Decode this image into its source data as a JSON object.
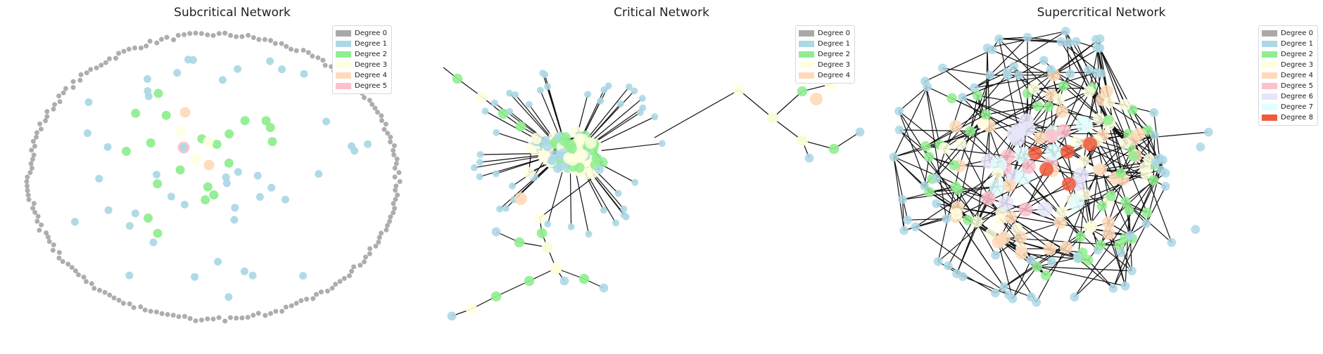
{
  "panels": [
    {
      "title": "Subcritical Network",
      "legend": [
        {
          "label": "Degree 0",
          "color": "#a9a9a9"
        },
        {
          "label": "Degree 1",
          "color": "#add8e6"
        },
        {
          "label": "Degree 2",
          "color": "#90ee90"
        },
        {
          "label": "Degree 3",
          "color": "#ffffe0"
        },
        {
          "label": "Degree 4",
          "color": "#ffdab9"
        },
        {
          "label": "Degree 5",
          "color": "#ffc0cb"
        }
      ]
    },
    {
      "title": "Critical Network",
      "legend": [
        {
          "label": "Degree 0",
          "color": "#a9a9a9"
        },
        {
          "label": "Degree 1",
          "color": "#add8e6"
        },
        {
          "label": "Degree 2",
          "color": "#90ee90"
        },
        {
          "label": "Degree 3",
          "color": "#ffffe0"
        },
        {
          "label": "Degree 4",
          "color": "#ffdab9"
        }
      ]
    },
    {
      "title": "Supercritical Network",
      "legend": [
        {
          "label": "Degree 0",
          "color": "#a9a9a9"
        },
        {
          "label": "Degree 1",
          "color": "#add8e6"
        },
        {
          "label": "Degree 2",
          "color": "#90ee90"
        },
        {
          "label": "Degree 3",
          "color": "#ffffe0"
        },
        {
          "label": "Degree 4",
          "color": "#ffdab9"
        },
        {
          "label": "Degree 5",
          "color": "#ffc0cb"
        },
        {
          "label": "Degree 6",
          "color": "#e6e6fa"
        },
        {
          "label": "Degree 7",
          "color": "#e0ffff"
        },
        {
          "label": "Degree 8",
          "color": "#f05a3c"
        }
      ]
    }
  ]
}
